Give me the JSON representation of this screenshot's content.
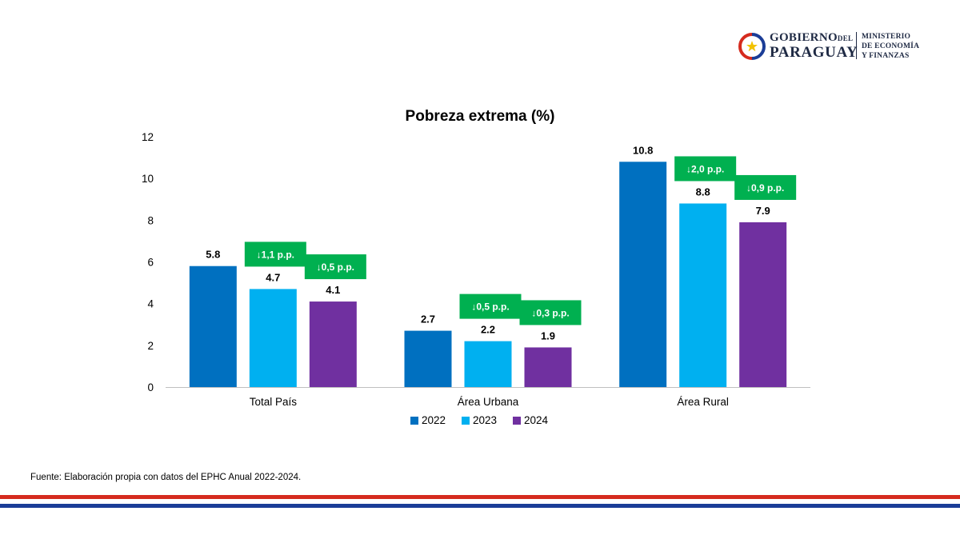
{
  "logo": {
    "line1": "GOBIERNO",
    "line1_small": "DEL",
    "line2": "PARAGUAY",
    "ministry": [
      "MINISTERIO",
      "DE ECONOMÍA",
      "Y FINANZAS"
    ]
  },
  "chart_data": {
    "type": "bar",
    "title": "Pobreza extrema (%)",
    "categories": [
      "Total País",
      "Área Urbana",
      "Área Rural"
    ],
    "series": [
      {
        "name": "2022",
        "color": "#0070c0",
        "values": [
          5.8,
          2.7,
          10.8
        ],
        "value_labels": [
          "5.8",
          "2.7",
          "10.8"
        ]
      },
      {
        "name": "2023",
        "color": "#00b0f0",
        "values": [
          4.7,
          2.2,
          8.8
        ],
        "value_labels": [
          "4.7",
          "2.2",
          "8.8"
        ]
      },
      {
        "name": "2024",
        "color": "#7030a0",
        "values": [
          4.1,
          1.9,
          7.9
        ],
        "value_labels": [
          "4.1",
          "1.9",
          "7.9"
        ]
      }
    ],
    "ylim": [
      0,
      12
    ],
    "yticks": [
      0,
      2,
      4,
      6,
      8,
      10,
      12
    ],
    "grid": false,
    "legend": "bottom",
    "annotations": [
      {
        "category": "Total País",
        "series": "2023",
        "text": "↓1,1 p.p."
      },
      {
        "category": "Total País",
        "series": "2024",
        "text": "↓0,5 p.p."
      },
      {
        "category": "Área Urbana",
        "series": "2023",
        "text": "↓0,5 p.p."
      },
      {
        "category": "Área Urbana",
        "series": "2024",
        "text": "↓0,3 p.p."
      },
      {
        "category": "Área Rural",
        "series": "2023",
        "text": "↓2,0 p.p."
      },
      {
        "category": "Área Rural",
        "series": "2024",
        "text": "↓0,9 p.p."
      }
    ],
    "annotation_color": "#00b050"
  },
  "source": "Fuente: Elaboración propia con datos del EPHC Anual 2022-2024.",
  "flag_colors": {
    "red": "#d52b1e",
    "blue": "#1b3d97"
  }
}
